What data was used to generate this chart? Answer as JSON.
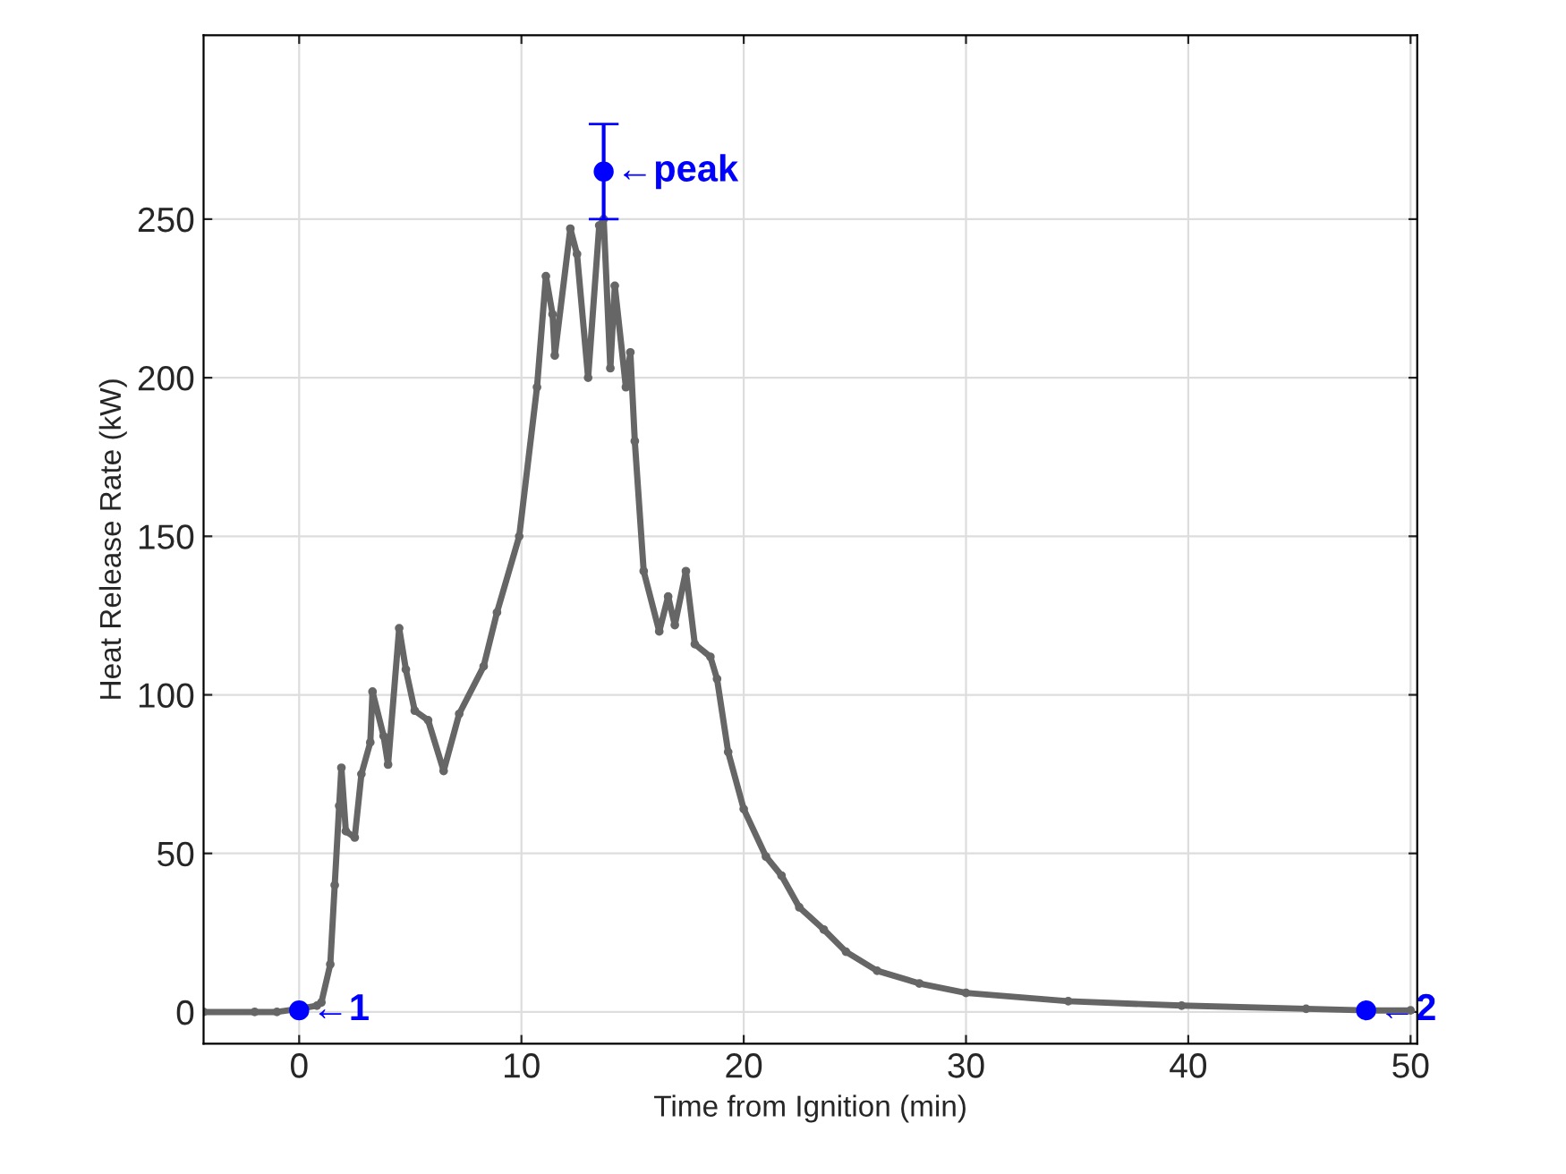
{
  "chart_data": {
    "type": "line",
    "xlabel": "Time from Ignition (min)",
    "ylabel": "Heat Release Rate (kW)",
    "xlim": [
      -4.3,
      50.3
    ],
    "ylim": [
      -10,
      308
    ],
    "xticks": [
      0,
      10,
      20,
      30,
      40,
      50
    ],
    "yticks": [
      0,
      50,
      100,
      150,
      200,
      250
    ],
    "grid": true,
    "series": [
      {
        "color": "#666666",
        "marker": "circle",
        "x": [
          -4.3,
          -2,
          -1,
          0,
          0.8,
          1.0,
          1.4,
          1.6,
          1.8,
          1.9,
          2.1,
          2.5,
          2.8,
          3.2,
          3.3,
          3.8,
          4.0,
          4.5,
          4.8,
          5.2,
          5.8,
          6.5,
          7.2,
          8.3,
          8.9,
          9.9,
          10.7,
          11.1,
          11.4,
          11.5,
          12.2,
          12.5,
          13.0,
          13.5,
          13.7,
          14.0,
          14.2,
          14.7,
          14.9,
          15.1,
          15.5,
          16.2,
          16.6,
          16.9,
          17.4,
          17.8,
          18.5,
          18.8,
          19.3,
          20.0,
          21.0,
          21.7,
          22.5,
          23.6,
          24.6,
          26.0,
          27.9,
          30.0,
          34.6,
          39.7,
          45.3,
          48.0,
          50.0
        ],
        "values": [
          0,
          0,
          0,
          1,
          2,
          3,
          15,
          40,
          65,
          77,
          57,
          55,
          75,
          85,
          101,
          87,
          78,
          121,
          108,
          95,
          92,
          76,
          94,
          109,
          126,
          150,
          197,
          232,
          220,
          207,
          247,
          239,
          200,
          248,
          250,
          203,
          229,
          197,
          208,
          180,
          139,
          120,
          131,
          122,
          139,
          116,
          112,
          105,
          82,
          64,
          49,
          43,
          33,
          26,
          19,
          13,
          9,
          6,
          3.4,
          2,
          1,
          0.5,
          0.5
        ]
      },
      {
        "type": "scatter",
        "color": "#0000ff",
        "marker": "circle",
        "x": [
          0,
          13.7,
          48.0
        ],
        "values": [
          0.5,
          265,
          0.5
        ],
        "errors": [
          null,
          [
            250,
            280
          ],
          null
        ]
      }
    ],
    "annotations": [
      {
        "text": "←1",
        "x": 0,
        "y": 0.5
      },
      {
        "text": "←peak",
        "x": 13.7,
        "y": 265
      },
      {
        "text": "←2",
        "x": 48.0,
        "y": 0.5
      }
    ]
  }
}
